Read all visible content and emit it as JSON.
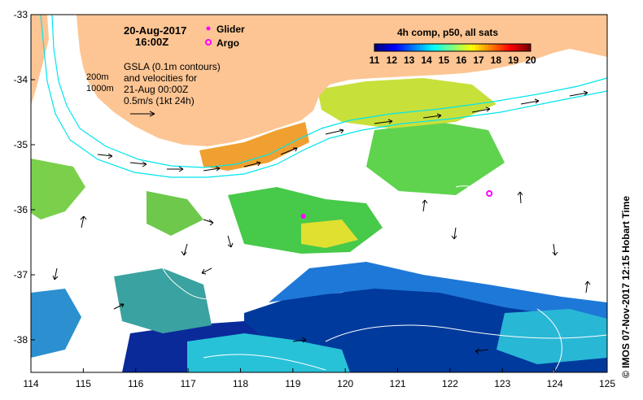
{
  "map": {
    "date": "20-Aug-2017",
    "time": "16:00Z",
    "legend": {
      "glider_label": "Glider",
      "argo_label": "Argo",
      "glider_color": "#ff00ff",
      "argo_color": "#ff00ff"
    },
    "bathymetry": {
      "contour_200": "200m",
      "contour_1000": "1000m",
      "contour_color": "#00e5ee"
    },
    "info_lines": [
      "GSLA (0.1m contours)",
      "and velocities for",
      "21-Aug 00:00Z",
      "0.5m/s (1kt 24h)"
    ],
    "colorbar": {
      "title": "4h comp, p50, all sats",
      "ticks": [
        "11",
        "12",
        "13",
        "14",
        "15",
        "16",
        "17",
        "18",
        "19",
        "20"
      ],
      "colors": [
        "#00007f",
        "#0000ff",
        "#007fff",
        "#00ffff",
        "#7fff7f",
        "#ffff00",
        "#ff7f00",
        "#ff0000",
        "#7f0000"
      ]
    },
    "axes": {
      "x_ticks": [
        "114",
        "115",
        "116",
        "117",
        "118",
        "119",
        "120",
        "121",
        "122",
        "123",
        "124",
        "125"
      ],
      "y_ticks": [
        "-33",
        "-34",
        "-35",
        "-36",
        "-37",
        "-38"
      ],
      "lon_range": [
        114,
        125
      ],
      "lat_range": [
        -38.5,
        -33
      ]
    },
    "land_color": "#fdc593",
    "copyright": "© IMOS 07-Nov-2017 12:15 Hobart Time",
    "glider_position": {
      "lon": 119.2,
      "lat": -36.1
    },
    "argo_position": {
      "lon": 122.75,
      "lat": -35.75
    }
  }
}
